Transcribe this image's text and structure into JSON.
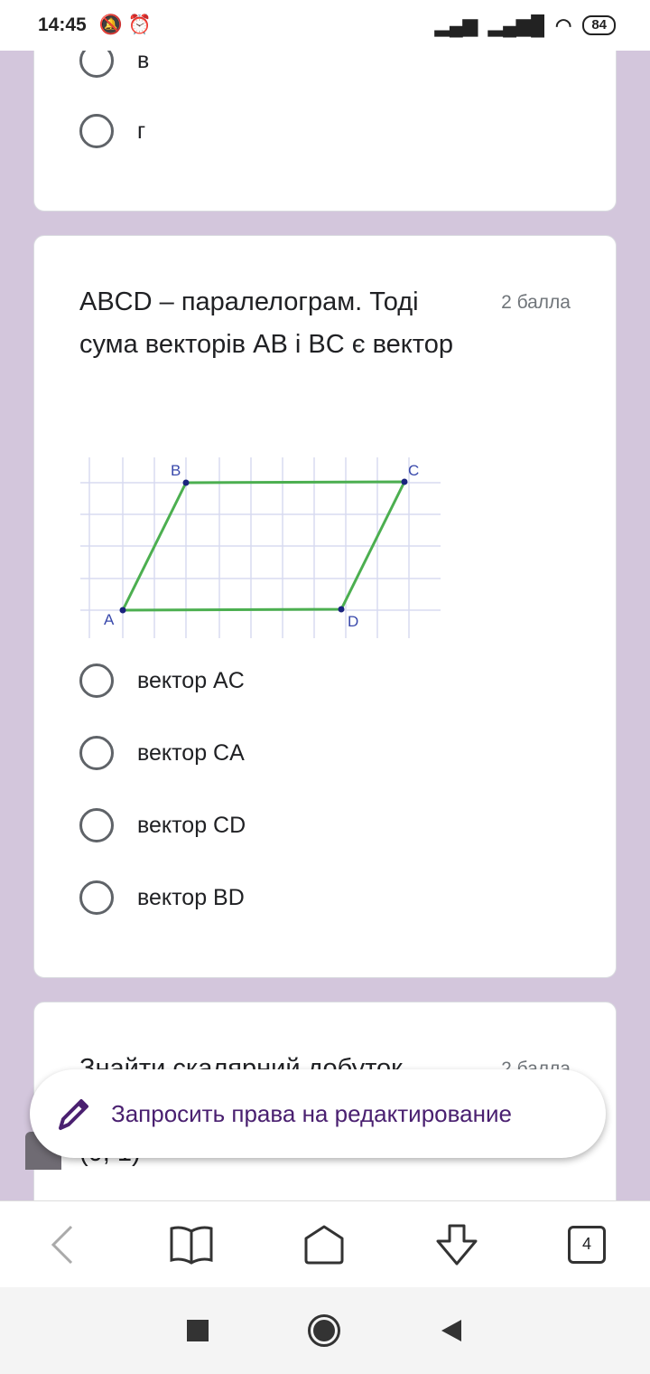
{
  "status_bar": {
    "time": "14:45",
    "battery": "84"
  },
  "prev_question": {
    "options": [
      "в",
      "г"
    ]
  },
  "question": {
    "title": "ABCD – паралелограм. Тоді сума векторів AB і BC є вектор",
    "points": "2 балла",
    "figure": {
      "labels": {
        "A": "A",
        "B": "B",
        "C": "C",
        "D": "D"
      },
      "line_color": "#4caf50",
      "point_color": "#1a237e"
    },
    "options": [
      "вектор AC",
      "вектор CA",
      "вектор CD",
      "вектор BD"
    ]
  },
  "next_question": {
    "title": "Знайти скалярний добуток",
    "points": "2 балла",
    "partial_text": "(0, 1)"
  },
  "fab": {
    "label": "Запросить права на редактирование",
    "accent": "#4a2070"
  },
  "browser_bar": {
    "tab_count": "4"
  }
}
